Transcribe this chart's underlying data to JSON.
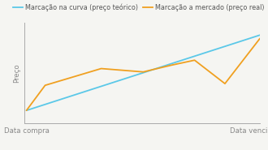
{
  "xlabel_left": "Data compra",
  "xlabel_right": "Data vencimento",
  "ylabel": "Preço",
  "legend_label_blue": "Marcação na curva (preço teórico)",
  "legend_label_orange": "Marcação a mercado (preço real)",
  "blue_color": "#5bc8e8",
  "orange_color": "#f0a020",
  "background_color": "#f5f5f2",
  "blue_x": [
    0,
    10
  ],
  "blue_y": [
    0.1,
    1.0
  ],
  "orange_x": [
    0,
    0.8,
    3.2,
    5.0,
    6.2,
    7.2,
    8.5,
    10
  ],
  "orange_y": [
    0.1,
    0.4,
    0.6,
    0.56,
    0.64,
    0.7,
    0.42,
    0.96
  ],
  "xlim": [
    -0.1,
    10
  ],
  "ylim": [
    -0.05,
    1.15
  ],
  "legend_fontsize": 5.8,
  "axis_label_fontsize": 6.2,
  "ylabel_fontsize": 6.2,
  "spine_color": "#aaaaaa",
  "tick_color": "#888888"
}
